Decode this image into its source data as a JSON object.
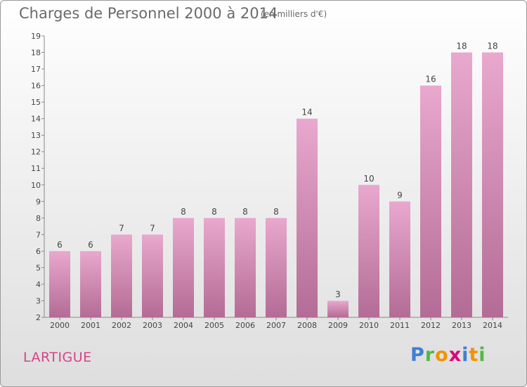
{
  "title": "Charges de Personnel 2000 à 2014",
  "subtitle": "(en milliers d'€)",
  "commune": "LARTIGUE",
  "logo": {
    "letters": [
      "P",
      "r",
      "o",
      "x",
      "i",
      "t",
      "i"
    ]
  },
  "colors": {
    "bar_light": "#e9a8ce",
    "bar_dark": "#b36c95",
    "title": "#6a6a6a",
    "commune": "#d8428a"
  },
  "chart_data": {
    "type": "bar",
    "categories": [
      "2000",
      "2001",
      "2002",
      "2003",
      "2004",
      "2005",
      "2006",
      "2007",
      "2008",
      "2009",
      "2010",
      "2011",
      "2012",
      "2013",
      "2014"
    ],
    "values": [
      6,
      6,
      7,
      7,
      8,
      8,
      8,
      8,
      14,
      3,
      10,
      9,
      16,
      18,
      18
    ],
    "ylim": [
      2,
      19
    ],
    "yticks": [
      2,
      3,
      4,
      5,
      6,
      7,
      8,
      9,
      10,
      11,
      12,
      13,
      14,
      15,
      16,
      17,
      18,
      19
    ],
    "grid": false,
    "data_labels": true
  }
}
